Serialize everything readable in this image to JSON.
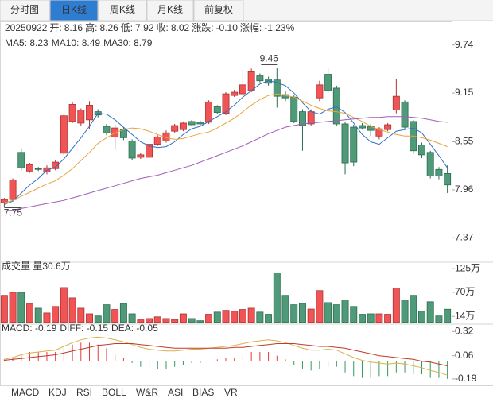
{
  "tabs": [
    "分时图",
    "日K线",
    "周K线",
    "月K线",
    "前复权"
  ],
  "active_tab": 1,
  "chart_data": [
    {
      "type": "candlestick",
      "info": {
        "date": "20250922",
        "fields": [
          {
            "label": "开:",
            "value": "8.16",
            "color": "#e33b3b"
          },
          {
            "label": "高:",
            "value": "8.26",
            "color": "#e33b3b"
          },
          {
            "label": "低:",
            "value": "7.92",
            "color": "#2f9a5b"
          },
          {
            "label": "收:",
            "value": "8.02",
            "color": "#2f9a5b"
          },
          {
            "label": "涨跌:",
            "value": "-0.10",
            "color": "#2f9a5b"
          },
          {
            "label": "涨幅:",
            "value": "-1.23%",
            "color": "#2f9a5b"
          }
        ]
      },
      "open": [
        7.8,
        7.84,
        8.42,
        8.19,
        8.22,
        8.18,
        8.22,
        8.41,
        8.8,
        8.78,
        8.82,
        8.92,
        8.74,
        8.61,
        8.7,
        8.56,
        8.36,
        8.36,
        8.52,
        8.56,
        8.68,
        8.7,
        8.8,
        8.79,
        8.79,
        8.98,
        8.9,
        9.12,
        9.14,
        9.18,
        9.36,
        9.32,
        9.31,
        9.13,
        9.1,
        8.92,
        8.77,
        9.09,
        9.38,
        9.21,
        8.77,
        8.73,
        8.75,
        8.74,
        8.62,
        8.7,
        8.94,
        9.04,
        8.8,
        8.51,
        8.42,
        8.21,
        8.16
      ],
      "high": [
        7.86,
        8.1,
        8.47,
        8.29,
        8.24,
        8.26,
        8.33,
        8.89,
        9.04,
        8.96,
        9.05,
        8.95,
        8.77,
        8.76,
        8.73,
        8.58,
        8.41,
        8.54,
        8.63,
        8.69,
        8.77,
        8.8,
        8.82,
        8.81,
        9.06,
        9.0,
        9.16,
        9.19,
        9.44,
        9.45,
        9.39,
        9.35,
        9.46,
        9.17,
        9.12,
        8.95,
        8.95,
        9.3,
        9.46,
        9.24,
        8.8,
        8.76,
        8.78,
        8.77,
        8.73,
        8.78,
        9.32,
        9.06,
        8.82,
        8.54,
        8.44,
        8.24,
        8.26
      ],
      "low": [
        7.75,
        7.82,
        8.2,
        8.17,
        8.19,
        8.15,
        8.2,
        8.38,
        8.78,
        8.75,
        8.71,
        8.85,
        8.63,
        8.45,
        8.57,
        8.33,
        8.34,
        8.34,
        8.5,
        8.54,
        8.66,
        8.68,
        8.74,
        8.75,
        8.77,
        8.89,
        8.88,
        9.1,
        9.12,
        9.16,
        9.28,
        9.24,
        8.97,
        9.05,
        8.78,
        8.44,
        8.75,
        9.05,
        9.15,
        8.74,
        8.15,
        8.25,
        8.7,
        8.62,
        8.58,
        8.68,
        8.9,
        8.7,
        8.4,
        8.35,
        8.1,
        8.09,
        7.92
      ],
      "close": [
        7.84,
        8.08,
        8.23,
        8.27,
        8.21,
        8.23,
        8.3,
        8.87,
        9.01,
        8.94,
        9.0,
        8.88,
        8.66,
        8.72,
        8.6,
        8.35,
        8.39,
        8.52,
        8.61,
        8.66,
        8.75,
        8.78,
        8.76,
        8.77,
        9.04,
        8.91,
        9.14,
        9.16,
        9.25,
        9.42,
        9.3,
        9.27,
        9.11,
        9.09,
        8.8,
        8.75,
        8.92,
        9.25,
        9.18,
        8.77,
        8.29,
        8.3,
        8.72,
        8.69,
        8.71,
        8.76,
        9.11,
        8.73,
        8.44,
        8.39,
        8.13,
        8.13,
        8.02
      ],
      "up_color": "#f05454",
      "down_color": "#4f9a78",
      "series": [
        {
          "name": "MA5: 8.23",
          "color": "#2f6fc6",
          "values": [
            7.78,
            7.82,
            7.92,
            8.02,
            8.1,
            8.2,
            8.24,
            8.34,
            8.47,
            8.6,
            8.74,
            8.9,
            8.89,
            8.82,
            8.73,
            8.64,
            8.55,
            8.5,
            8.48,
            8.49,
            8.55,
            8.64,
            8.71,
            8.74,
            8.8,
            8.86,
            8.92,
            9.0,
            9.1,
            9.18,
            9.26,
            9.3,
            9.28,
            9.24,
            9.15,
            9.03,
            8.92,
            8.89,
            8.95,
            8.98,
            8.91,
            8.78,
            8.64,
            8.55,
            8.52,
            8.6,
            8.68,
            8.7,
            8.72,
            8.66,
            8.52,
            8.38,
            8.23
          ]
        },
        {
          "name": "MA10: 8.49",
          "color": "#e8a33d",
          "values": [
            7.8,
            7.83,
            7.88,
            7.93,
            7.98,
            8.03,
            8.07,
            8.14,
            8.22,
            8.32,
            8.42,
            8.53,
            8.6,
            8.66,
            8.7,
            8.72,
            8.71,
            8.68,
            8.64,
            8.6,
            8.58,
            8.59,
            8.62,
            8.65,
            8.67,
            8.72,
            8.78,
            8.84,
            8.92,
            9.0,
            9.07,
            9.12,
            9.14,
            9.12,
            9.1,
            9.05,
            9.0,
            8.96,
            8.93,
            8.92,
            8.9,
            8.85,
            8.8,
            8.74,
            8.7,
            8.67,
            8.64,
            8.62,
            8.62,
            8.6,
            8.57,
            8.53,
            8.49
          ]
        },
        {
          "name": "MA30: 8.79",
          "color": "#a05cb8",
          "values": [
            7.7,
            7.71,
            7.73,
            7.75,
            7.77,
            7.79,
            7.81,
            7.83,
            7.86,
            7.89,
            7.92,
            7.95,
            7.98,
            8.01,
            8.04,
            8.07,
            8.1,
            8.12,
            8.14,
            8.17,
            8.2,
            8.23,
            8.26,
            8.3,
            8.34,
            8.38,
            8.42,
            8.46,
            8.5,
            8.55,
            8.6,
            8.65,
            8.69,
            8.73,
            8.75,
            8.77,
            8.78,
            8.79,
            8.8,
            8.81,
            8.82,
            8.83,
            8.84,
            8.85,
            8.85,
            8.86,
            8.86,
            8.86,
            8.85,
            8.84,
            8.82,
            8.8,
            8.79
          ]
        }
      ],
      "max_label_index": 32,
      "min_label_index": 0,
      "ylim": [
        7.07,
        10.02
      ],
      "yticks": [
        9.74,
        9.15,
        8.55,
        7.96,
        7.37
      ]
    },
    {
      "type": "bar",
      "title": "成交量 量30.6万",
      "values": [
        63,
        70,
        70,
        43,
        33,
        22,
        37,
        81,
        57,
        33,
        20,
        15,
        41,
        30,
        44,
        20,
        6,
        9,
        13,
        9,
        7,
        20,
        9,
        4,
        19,
        24,
        28,
        26,
        30,
        33,
        24,
        19,
        115,
        63,
        41,
        44,
        31,
        74,
        46,
        41,
        52,
        37,
        19,
        20,
        20,
        19,
        80,
        52,
        63,
        26,
        48,
        15,
        30.6
      ],
      "ylim": [
        -4,
        140
      ],
      "yticks": [
        {
          "value": 125,
          "label": "125万"
        },
        {
          "value": 70,
          "label": "70万"
        },
        {
          "value": 14,
          "label": "14万"
        }
      ]
    },
    {
      "type": "macd",
      "series": [
        {
          "name": "MACD: -0.19",
          "color": "#333333",
          "values": [
            0.02,
            0.04,
            0.08,
            0.1,
            0.1,
            0.1,
            0.1,
            0.14,
            0.18,
            0.2,
            0.2,
            0.18,
            0.14,
            0.08,
            0.04,
            -0.02,
            -0.06,
            -0.08,
            -0.08,
            -0.08,
            -0.06,
            -0.04,
            -0.02,
            -0.02,
            0,
            0.02,
            0.04,
            0.04,
            0.08,
            0.1,
            0.1,
            0.1,
            0.06,
            0.02,
            -0.04,
            -0.08,
            -0.1,
            -0.08,
            -0.06,
            -0.06,
            -0.12,
            -0.16,
            -0.18,
            -0.18,
            -0.16,
            -0.16,
            -0.12,
            -0.12,
            -0.14,
            -0.14,
            -0.18,
            -0.18,
            -0.19
          ]
        },
        {
          "name": "DIFF: -0.15",
          "color": "#d8b04a",
          "values": [
            0.02,
            0.04,
            0.07,
            0.09,
            0.1,
            0.11,
            0.12,
            0.16,
            0.2,
            0.23,
            0.25,
            0.26,
            0.25,
            0.23,
            0.21,
            0.18,
            0.15,
            0.13,
            0.12,
            0.11,
            0.11,
            0.12,
            0.13,
            0.13,
            0.14,
            0.15,
            0.16,
            0.17,
            0.19,
            0.21,
            0.22,
            0.23,
            0.22,
            0.2,
            0.17,
            0.14,
            0.12,
            0.12,
            0.13,
            0.12,
            0.08,
            0.04,
            0.01,
            -0.01,
            -0.02,
            -0.03,
            -0.02,
            -0.03,
            -0.05,
            -0.07,
            -0.1,
            -0.12,
            -0.15
          ]
        },
        {
          "name": "DEA: -0.05",
          "color": "#c0392b",
          "values": [
            0.01,
            0.02,
            0.03,
            0.04,
            0.05,
            0.06,
            0.07,
            0.09,
            0.11,
            0.13,
            0.15,
            0.17,
            0.18,
            0.19,
            0.19,
            0.19,
            0.18,
            0.17,
            0.16,
            0.15,
            0.14,
            0.14,
            0.14,
            0.14,
            0.14,
            0.14,
            0.14,
            0.15,
            0.15,
            0.16,
            0.17,
            0.18,
            0.19,
            0.19,
            0.19,
            0.18,
            0.17,
            0.16,
            0.16,
            0.15,
            0.14,
            0.12,
            0.1,
            0.08,
            0.06,
            0.05,
            0.04,
            0.03,
            0.02,
            0.0,
            -0.01,
            -0.03,
            -0.05
          ]
        }
      ],
      "up_color": "#e33b3b",
      "down_color": "#2f9a5b",
      "ylim": [
        -0.26,
        0.4
      ],
      "yticks": [
        0.32,
        0.06,
        -0.19
      ]
    }
  ],
  "indicator_tabs": [
    "MACD",
    "KDJ",
    "RSI",
    "BOLL",
    "W&R",
    "ASI",
    "BIAS",
    "VR"
  ],
  "active_indicator": 0
}
